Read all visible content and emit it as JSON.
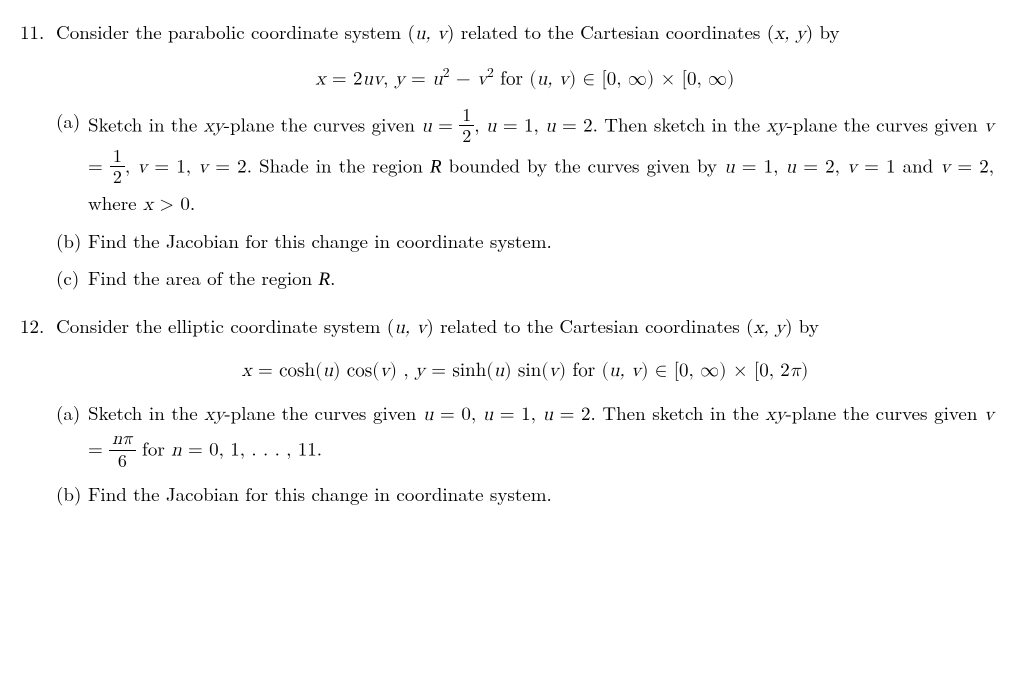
{
  "p11": {
    "number": "11.",
    "intro_a": "Consider the parabolic coordinate system (",
    "intro_b": ") related to the Cartesian coordinates (",
    "intro_c": ") by",
    "uv": "u, v",
    "xy": "x, y",
    "eq_lhs1": "x",
    "eq_rhs1": " = 2",
    "eq_uv": "uv",
    "eq_comma": ",  ",
    "eq_lhs2": "y",
    "eq_eq2": " = ",
    "eq_u": "u",
    "eq_minus": " − ",
    "eq_v": "v",
    "eq_for": " for  (",
    "eq_in": ") ∈ [0, ∞) × [0, ∞)",
    "a": {
      "label": "(a)",
      "t1": "Sketch in the ",
      "xy_plane": "xy",
      "t2": "-plane the curves given ",
      "u": "u",
      "eq": " = ",
      "half_n": "1",
      "half_d": "2",
      "c1": ", ",
      "one": "1",
      "two": "2",
      "t3": ". Then sketch in the ",
      "t4": "-plane the curves given ",
      "v": "v",
      "t5": ". Shade in the region ",
      "R": "R",
      "t6": " bounded by the curves given by ",
      "t7": " and ",
      "t8": ", where ",
      "x": "x",
      "gt0": " > 0."
    },
    "b": {
      "label": "(b)",
      "text": "Find the Jacobian for this change in coordinate system."
    },
    "c": {
      "label": "(c)",
      "t1": "Find the area of the region ",
      "R": "R",
      "t2": "."
    }
  },
  "p12": {
    "number": "12.",
    "intro_a": "Consider the elliptic coordinate system (",
    "intro_b": ") related to the Cartesian coordinates (",
    "intro_c": ") by",
    "uv": "u, v",
    "xy": "x, y",
    "eq_x": "x",
    "eq1": " = cosh(",
    "eq_u": "u",
    "eq2": ") cos(",
    "eq_v": "v",
    "eq3": ") ,  ",
    "eq_y": "y",
    "eq4": " = sinh(",
    "eq5": ") sin(",
    "eq6": ")  for  (",
    "eq_in": ") ∈ [0, ∞) × [0, 2",
    "pi": "π",
    "close": ")",
    "a": {
      "label": "(a)",
      "t1": "Sketch in the ",
      "xy": "xy",
      "t2": "-plane the curves given ",
      "u": "u",
      "eq": " = ",
      "zero": "0",
      "c": ", ",
      "one": "1",
      "two": "2",
      "t3": ". Then sketch in the ",
      "t4": "-plane the curves given ",
      "v": "v",
      "frac_n": "nπ",
      "frac_d": "6",
      "t5": " for ",
      "n": "n",
      "t6": " = 0, 1, . . . , 11."
    },
    "b": {
      "label": "(b)",
      "text": "Find the Jacobian for this change in coordinate system."
    }
  }
}
